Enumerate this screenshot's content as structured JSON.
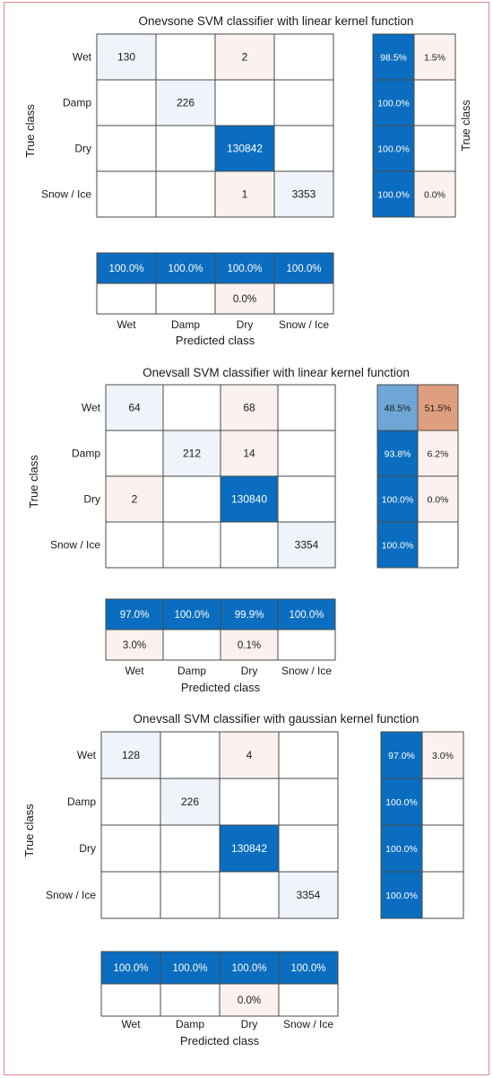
{
  "palette": {
    "dark_blue": "#0b6dbf",
    "light_blue": "#eef4fa",
    "mid_blue": "#6ea7d6",
    "light_orange": "#fbf2ef",
    "orange": "#de9f80",
    "grid_line": "#4a4a4a",
    "frame": "#d98a8a"
  },
  "chart_data": [
    {
      "type": "heatmap",
      "title": "Onevsone SVM classifier with linear kernel function",
      "ylabel": "True class",
      "xlabel": "Predicted class",
      "row_summary_label": "True class",
      "classes": [
        "Wet",
        "Damp",
        "Dry",
        "Snow / Ice"
      ],
      "matrix": [
        [
          130,
          null,
          2,
          null
        ],
        [
          null,
          226,
          null,
          null
        ],
        [
          null,
          null,
          130842,
          null
        ],
        [
          null,
          null,
          1,
          3353
        ]
      ],
      "row_summary": [
        [
          "98.5%",
          "1.5%"
        ],
        [
          "100.0%",
          ""
        ],
        [
          "100.0%",
          ""
        ],
        [
          "100.0%",
          "0.0%"
        ]
      ],
      "column_summary": [
        [
          "100.0%",
          "100.0%",
          "100.0%",
          "100.0%"
        ],
        [
          "",
          "",
          "0.0%",
          ""
        ]
      ]
    },
    {
      "type": "heatmap",
      "title": "Onevsall SVM classifier with linear kernel function",
      "ylabel": "True class",
      "xlabel": "Predicted class",
      "row_summary_label": "",
      "classes": [
        "Wet",
        "Damp",
        "Dry",
        "Snow / Ice"
      ],
      "matrix": [
        [
          64,
          null,
          68,
          null
        ],
        [
          null,
          212,
          14,
          null
        ],
        [
          2,
          null,
          130840,
          null
        ],
        [
          null,
          null,
          null,
          3354
        ]
      ],
      "row_summary": [
        [
          "48.5%",
          "51.5%"
        ],
        [
          "93.8%",
          "6.2%"
        ],
        [
          "100.0%",
          "0.0%"
        ],
        [
          "100.0%",
          ""
        ]
      ],
      "column_summary": [
        [
          "97.0%",
          "100.0%",
          "99.9%",
          "100.0%"
        ],
        [
          "3.0%",
          "",
          "0.1%",
          ""
        ]
      ]
    },
    {
      "type": "heatmap",
      "title": "Onevsall SVM classifier with gaussian kernel function",
      "ylabel": "True class",
      "xlabel": "Predicted class",
      "row_summary_label": "",
      "classes": [
        "Wet",
        "Damp",
        "Dry",
        "Snow / Ice"
      ],
      "matrix": [
        [
          128,
          null,
          4,
          null
        ],
        [
          null,
          226,
          null,
          null
        ],
        [
          null,
          null,
          130842,
          null
        ],
        [
          null,
          null,
          null,
          3354
        ]
      ],
      "row_summary": [
        [
          "97.0%",
          "3.0%"
        ],
        [
          "100.0%",
          ""
        ],
        [
          "100.0%",
          ""
        ],
        [
          "100.0%",
          ""
        ]
      ],
      "column_summary": [
        [
          "100.0%",
          "100.0%",
          "100.0%",
          "100.0%"
        ],
        [
          "",
          "",
          "0.0%",
          ""
        ]
      ]
    }
  ]
}
